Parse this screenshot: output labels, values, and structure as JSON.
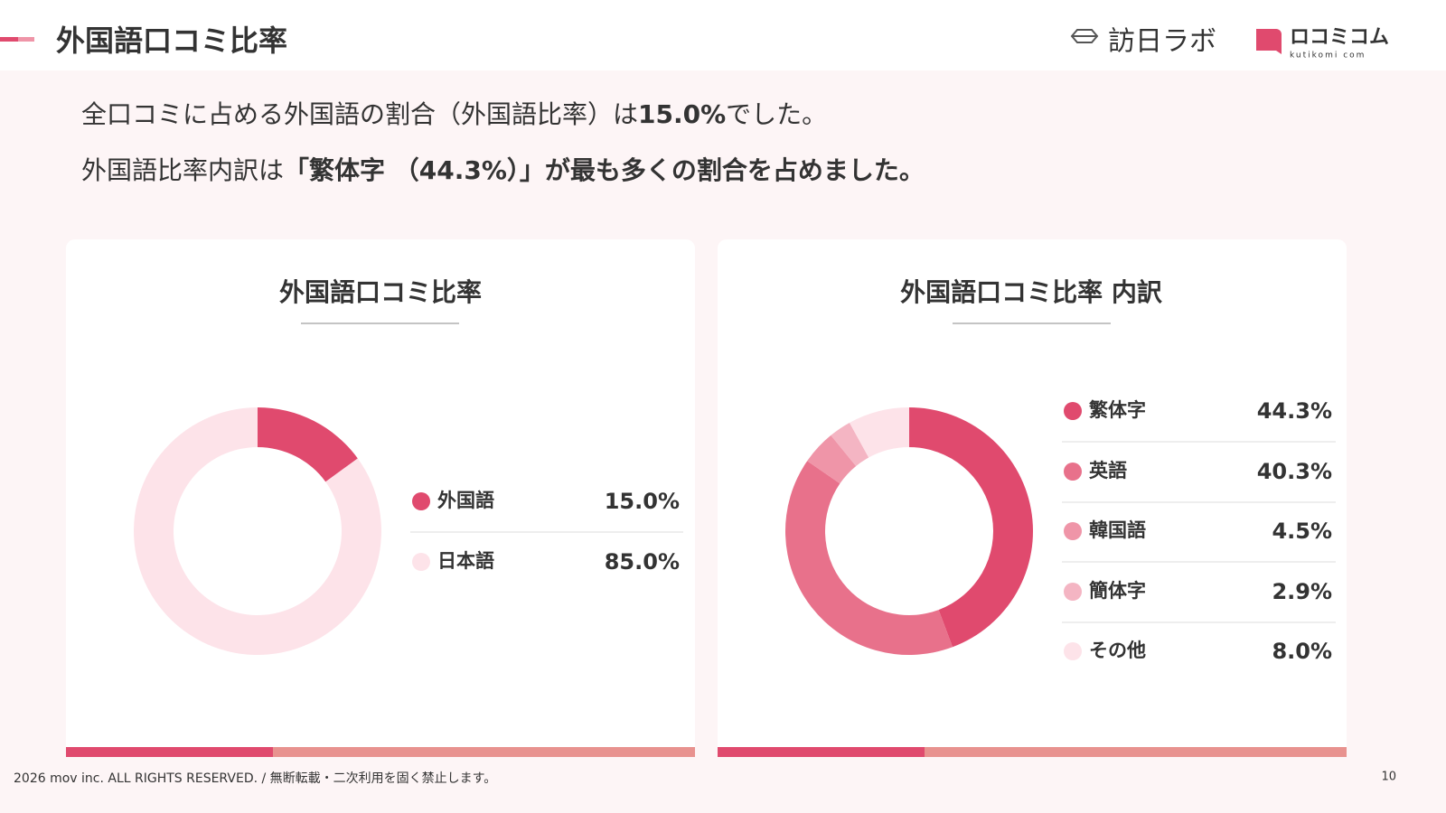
{
  "header": {
    "title": "外国語口コミ比率",
    "logo_left": "訪日ラボ",
    "logo_right": "ロコミコム",
    "logo_right_sub": "kutikomi com"
  },
  "summary": [
    [
      "全口コミに占める外国語の割合（外国語比率）は",
      "15.0%",
      "でした。"
    ],
    [
      "外国語比率内訳は",
      "「繁体字 （44.3%）」が最も多くの割合を占めました。"
    ]
  ],
  "chart_data": [
    {
      "type": "pie",
      "title": "外国語口コミ比率",
      "categories": [
        "外国語",
        "日本語"
      ],
      "values": [
        15.0,
        85.0
      ],
      "value_labels": [
        "15.0%",
        "85.0%"
      ],
      "colors": [
        "#e04a6e",
        "#fde3e9"
      ]
    },
    {
      "type": "pie",
      "title": "外国語口コミ比率 内訳",
      "categories": [
        "繁体字",
        "英語",
        "韓国語",
        "簡体字",
        "その他"
      ],
      "values": [
        44.3,
        40.3,
        4.5,
        2.9,
        8.0
      ],
      "value_labels": [
        "44.3%",
        "40.3%",
        "4.5%",
        "2.9%",
        "8.0%"
      ],
      "colors": [
        "#e04a6e",
        "#e8718b",
        "#ef95a8",
        "#f4b5c3",
        "#fde3e9"
      ]
    }
  ],
  "footer": {
    "copyright": "2026 mov inc. ALL RIGHTS RESERVED. / 無断転載・二次利用を固く禁止します。",
    "page": "10"
  }
}
